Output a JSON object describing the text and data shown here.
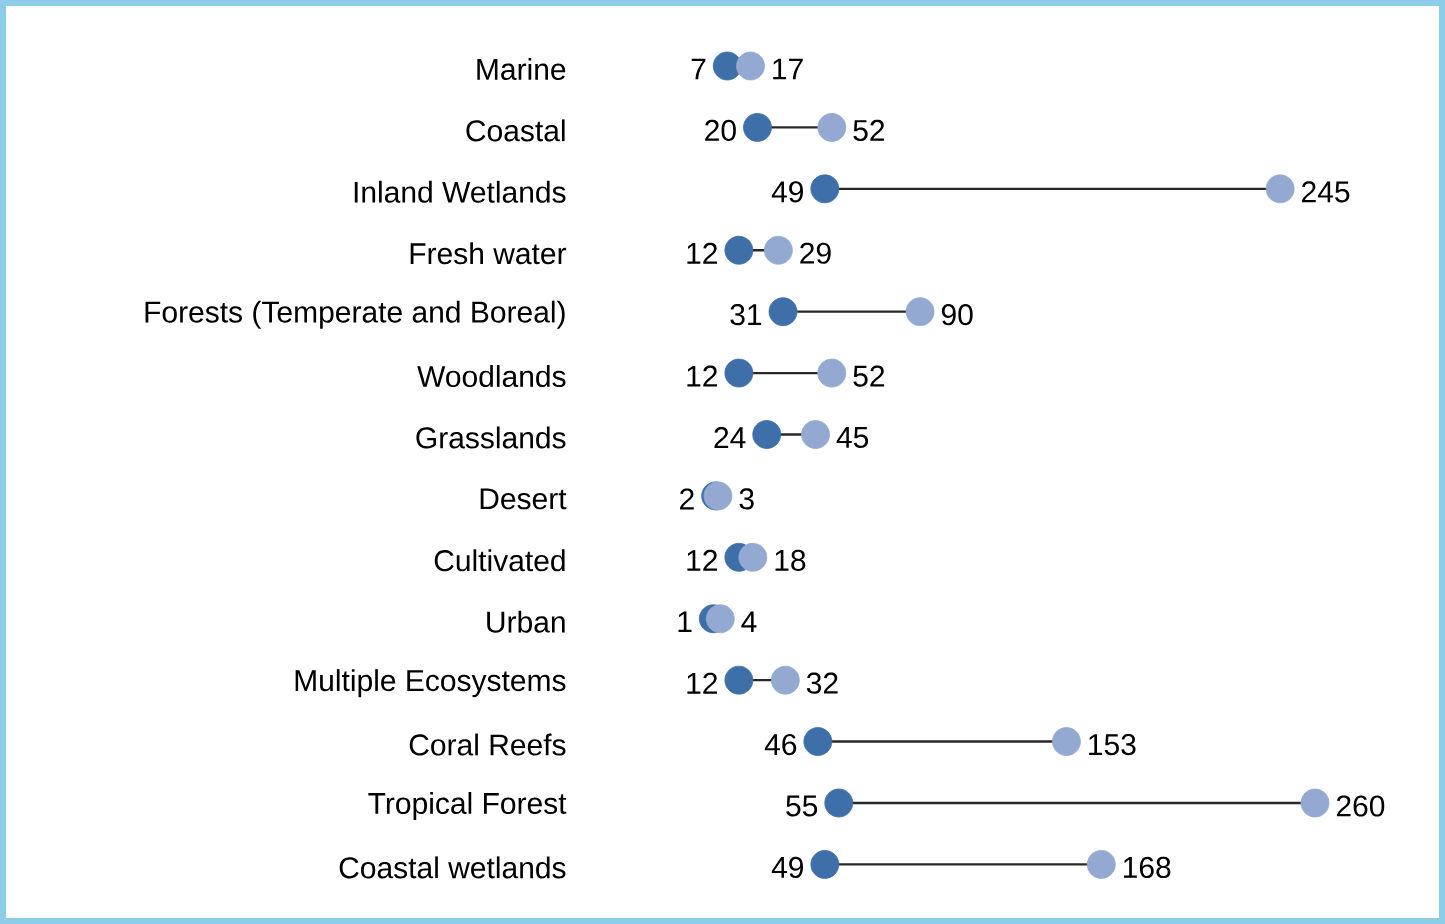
{
  "chart_data": {
    "type": "scatter",
    "orientation": "horizontal",
    "data_labels": true,
    "tick_labels": "y",
    "categories": [
      "Marine",
      "Coastal",
      "Inland Wetlands",
      "Fresh water",
      "Forests (Temperate and Boreal)",
      "Woodlands",
      "Grasslands",
      "Desert",
      "Cultivated",
      "Urban",
      "Multiple Ecosystems",
      "Coral Reefs",
      "Tropical Forest",
      "Coastal wetlands"
    ],
    "series": [
      {
        "color": "#3f6fa8",
        "values": [
          7,
          20,
          49,
          12,
          31,
          12,
          24,
          2,
          12,
          1,
          12,
          46,
          55,
          49
        ]
      },
      {
        "color": "#93a9d2",
        "values": [
          17,
          52,
          245,
          29,
          90,
          52,
          45,
          3,
          18,
          4,
          32,
          153,
          260,
          168
        ]
      }
    ]
  }
}
